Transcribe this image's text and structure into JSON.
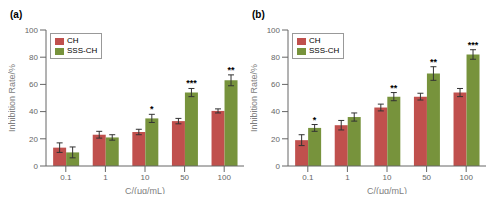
{
  "chart_data": [
    {
      "type": "bar",
      "title": "(a)",
      "xlabel": "C/(μg/mL)",
      "ylabel": "Inhibition Rate/%",
      "categories": [
        "0.1",
        "1",
        "10",
        "50",
        "100"
      ],
      "series": [
        {
          "name": "CH",
          "color": "#c0504d",
          "values": [
            13.5,
            23.0,
            25.0,
            33.0,
            40.5
          ],
          "errors": [
            3.5,
            2.5,
            2.0,
            2.0,
            1.5
          ]
        },
        {
          "name": "SSS-CH",
          "color": "#77933c",
          "values": [
            10.0,
            21.0,
            35.0,
            54.0,
            63.0
          ],
          "errors": [
            4.0,
            2.0,
            3.0,
            3.0,
            4.0
          ],
          "annotations": [
            null,
            null,
            "*",
            "***",
            "**"
          ]
        }
      ],
      "ylim": [
        0,
        100
      ],
      "yticks": [
        0,
        20,
        40,
        60,
        80,
        100
      ],
      "legend": "upper left"
    },
    {
      "type": "bar",
      "title": "(b)",
      "xlabel": "C/(μg/mL)",
      "ylabel": "Inhibition Rate/%",
      "categories": [
        "0.1",
        "1",
        "10",
        "50",
        "100"
      ],
      "series": [
        {
          "name": "CH",
          "color": "#c0504d",
          "values": [
            19.0,
            30.0,
            43.0,
            51.0,
            54.0
          ],
          "errors": [
            4.0,
            3.5,
            2.5,
            2.5,
            3.0
          ]
        },
        {
          "name": "SSS-CH",
          "color": "#77933c",
          "values": [
            28.0,
            36.0,
            51.0,
            68.0,
            82.0
          ],
          "errors": [
            2.5,
            3.0,
            3.0,
            5.0,
            3.5
          ],
          "annotations": [
            "*",
            null,
            "**",
            "**",
            "***"
          ]
        }
      ],
      "ylim": [
        0,
        100
      ],
      "yticks": [
        0,
        20,
        40,
        60,
        80,
        100
      ],
      "legend": "upper left"
    }
  ]
}
